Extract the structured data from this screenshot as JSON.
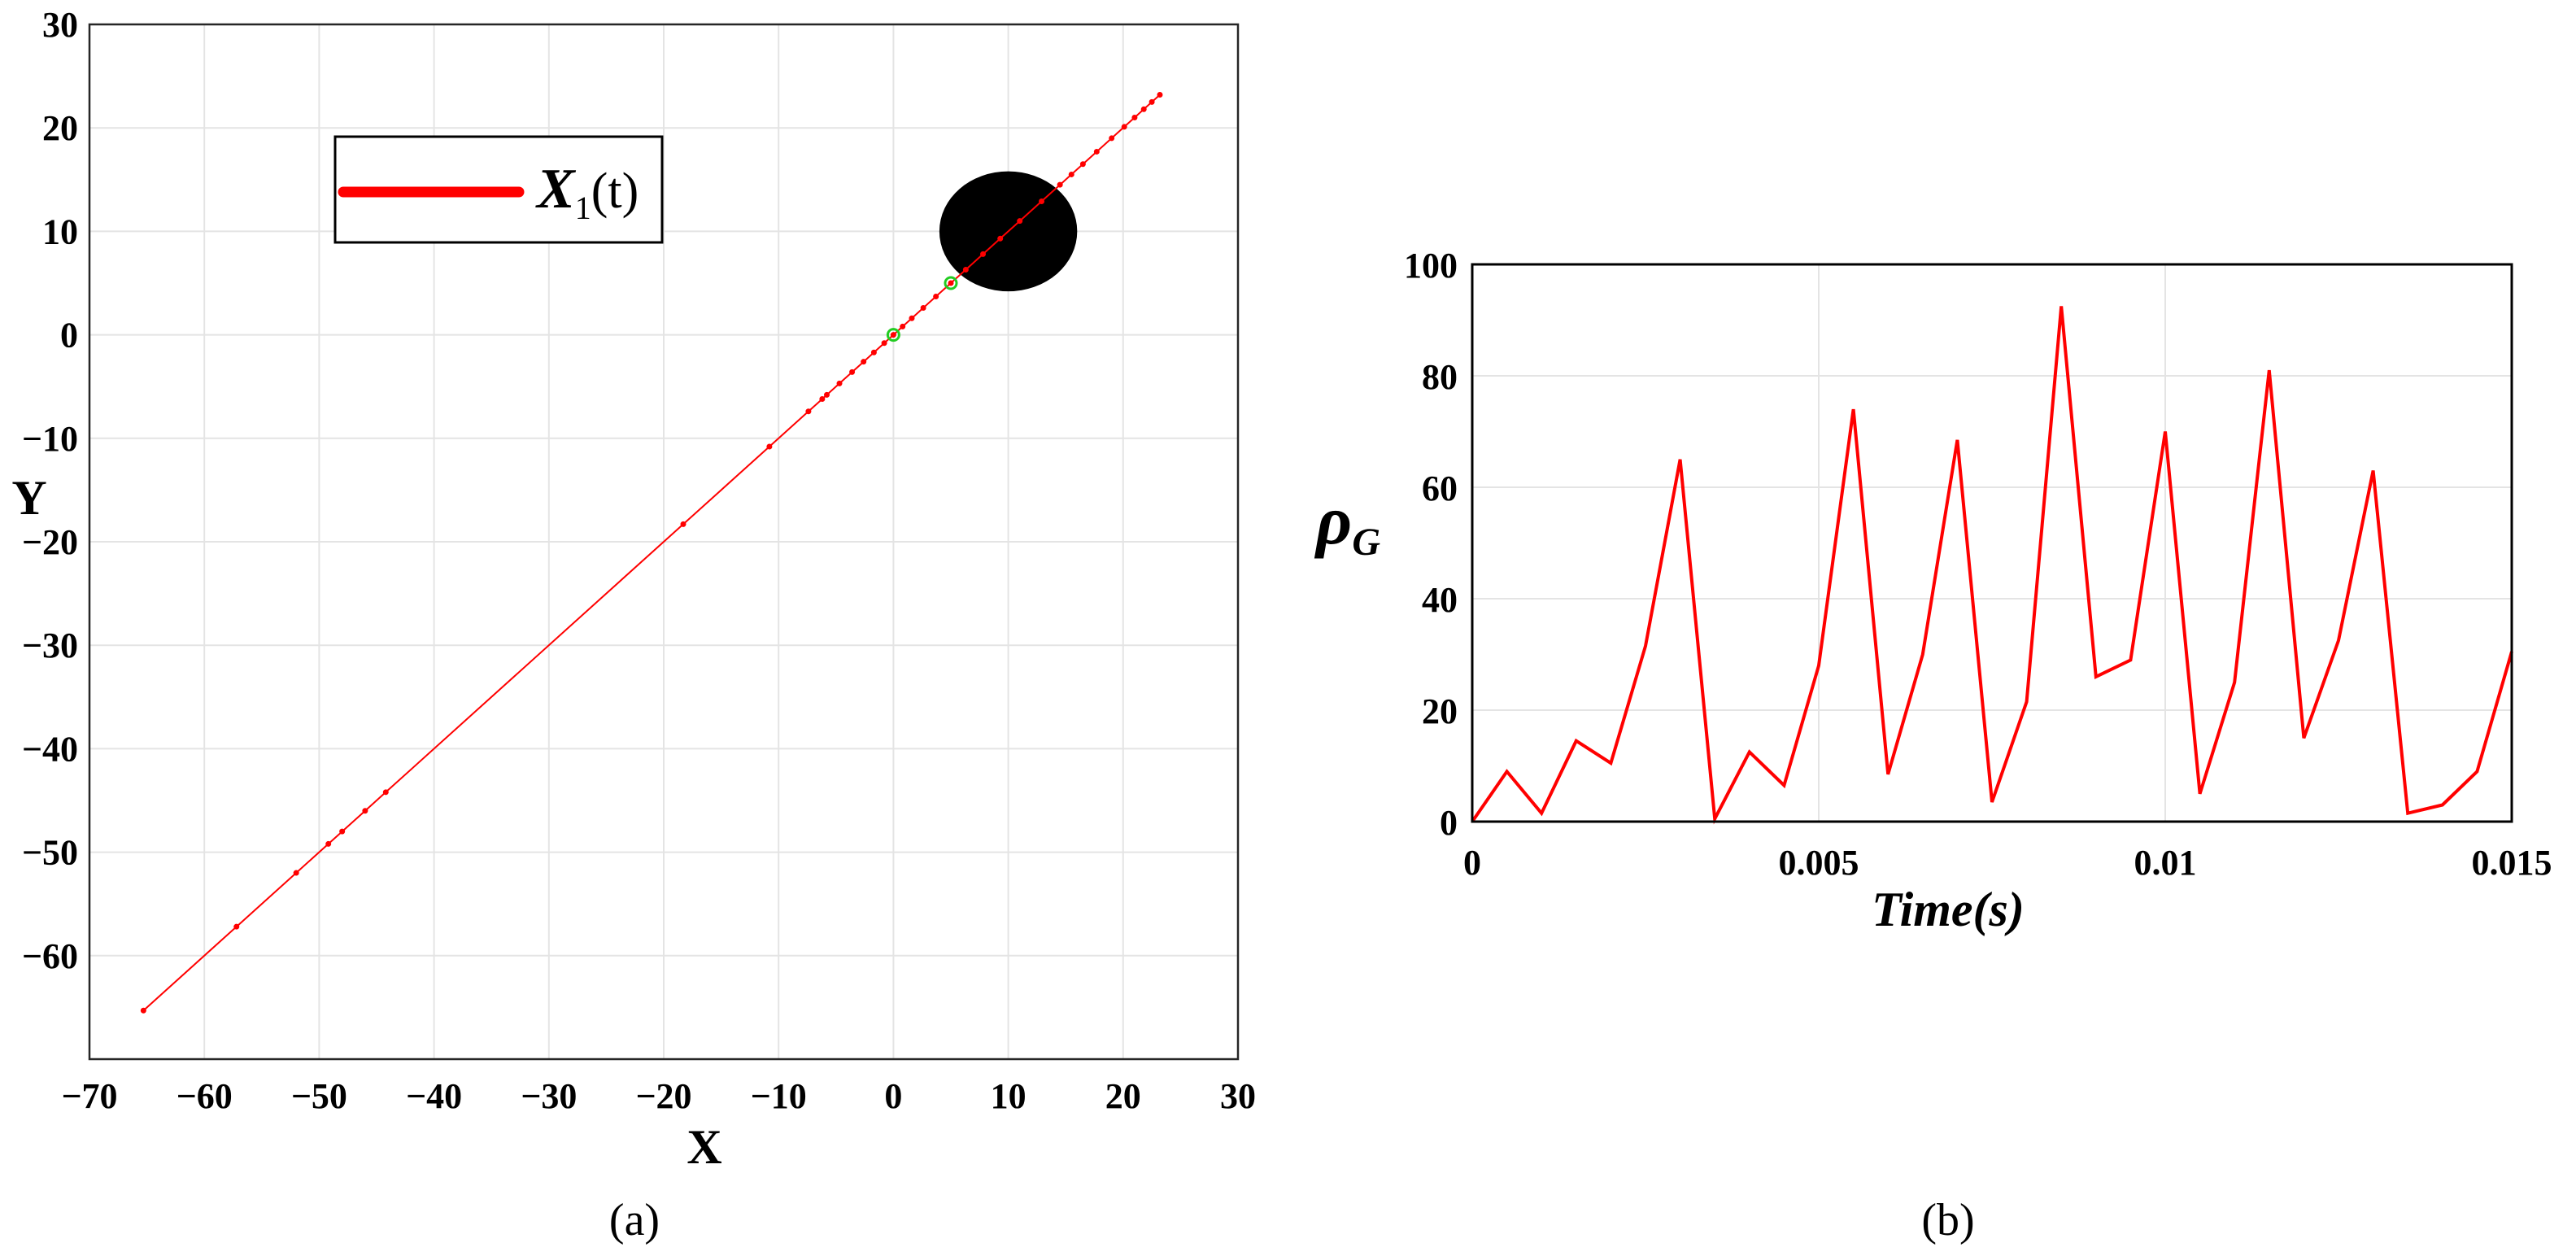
{
  "chart_data": [
    {
      "type": "line",
      "panel": "(a)",
      "xlabel": "X",
      "ylabel": "Y",
      "xlim": [
        -70,
        30
      ],
      "ylim": [
        -70,
        30
      ],
      "xticks": [
        -70,
        -60,
        -50,
        -40,
        -30,
        -20,
        -10,
        0,
        10,
        20,
        30
      ],
      "yticks": [
        -60,
        -50,
        -40,
        -30,
        -20,
        -10,
        0,
        10,
        20,
        30
      ],
      "xtick_labels": [
        "−70",
        "−60",
        "−50",
        "−40",
        "−30",
        "−20",
        "−10",
        "0",
        "10",
        "20",
        "30"
      ],
      "ytick_labels": [
        "−60",
        "−50",
        "−40",
        "−30",
        "−20",
        "−10",
        "0",
        "10",
        "20",
        "30"
      ],
      "grid": true,
      "legend": {
        "placement": "top-left",
        "entry_symbol": "X",
        "entry_subscript": "1",
        "entry_suffix": "(t)"
      },
      "series": [
        {
          "name": "X1(t)",
          "color": "#ff0000",
          "x": [
            -65.3,
            -57.2,
            -52.0,
            -49.2,
            -48.0,
            -46.0,
            -44.2,
            -18.3,
            -10.8,
            -7.4,
            -6.2,
            -5.8,
            -4.7,
            -3.6,
            -2.6,
            -1.7,
            -0.8,
            0.0,
            0.8,
            1.6,
            2.6,
            3.7,
            5.0,
            6.3,
            7.8,
            9.3,
            11.0,
            12.9,
            14.5,
            15.5,
            16.5,
            17.7,
            19.0,
            20.1,
            21.0,
            21.8,
            22.5,
            23.2
          ],
          "y": [
            -65.3,
            -57.2,
            -52.0,
            -49.2,
            -48.0,
            -46.0,
            -44.2,
            -18.3,
            -10.8,
            -7.4,
            -6.2,
            -5.8,
            -4.7,
            -3.6,
            -2.6,
            -1.7,
            -0.8,
            0.0,
            0.8,
            1.6,
            2.6,
            3.7,
            5.0,
            6.3,
            7.8,
            9.3,
            11.0,
            12.9,
            14.5,
            15.5,
            16.5,
            17.7,
            19.0,
            20.1,
            21.0,
            21.8,
            22.5,
            23.2
          ]
        }
      ],
      "markers": [
        {
          "x": 0,
          "y": 0,
          "color": "#22cc22"
        },
        {
          "x": 5,
          "y": 5,
          "color": "#22cc22"
        }
      ],
      "obstacle": {
        "cx": 10,
        "cy": 10,
        "rx": 6,
        "ry": 5.8,
        "color": "#000000"
      }
    },
    {
      "type": "line",
      "panel": "(b)",
      "xlabel": "Time(s)",
      "ylabel_symbol": "ρ",
      "ylabel_subscript": "G",
      "xlim": [
        0,
        0.015
      ],
      "ylim": [
        0,
        100
      ],
      "xticks": [
        0,
        0.005,
        0.01,
        0.015
      ],
      "yticks": [
        0,
        20,
        40,
        60,
        80,
        100
      ],
      "xtick_labels": [
        "0",
        "0.005",
        "0.01",
        "0.015"
      ],
      "ytick_labels": [
        "0",
        "20",
        "40",
        "60",
        "80",
        "100"
      ],
      "grid": true,
      "series": [
        {
          "color": "#ff0000",
          "x": [
            0,
            0.0005,
            0.001,
            0.0015,
            0.002,
            0.0025,
            0.003,
            0.0035,
            0.004,
            0.0045,
            0.005,
            0.0055,
            0.006,
            0.0065,
            0.007,
            0.0075,
            0.008,
            0.0085,
            0.009,
            0.0095,
            0.01,
            0.0105,
            0.011,
            0.0115,
            0.012,
            0.0125,
            0.013,
            0.0135,
            0.014,
            0.0145,
            0.015
          ],
          "y": [
            0,
            9,
            1.5,
            14.5,
            10.5,
            31.5,
            65,
            0.5,
            12.5,
            6.5,
            28,
            74,
            8.5,
            30,
            68.5,
            3.5,
            21.5,
            92.5,
            26,
            29,
            70,
            5,
            25,
            81,
            15,
            32.5,
            63,
            1.5,
            3,
            9,
            30.5
          ]
        }
      ]
    }
  ],
  "captions": {
    "a": "(a)",
    "b": "(b)"
  }
}
